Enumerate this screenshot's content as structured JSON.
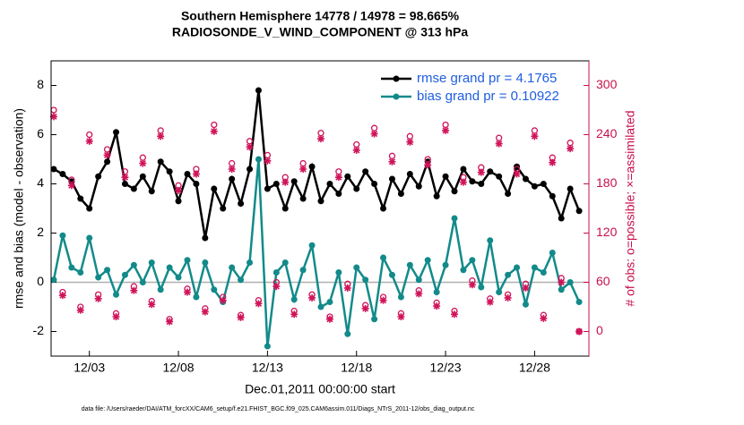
{
  "chart_data": {
    "type": "line",
    "title": "Southern Hemisphere 14778 / 14978 = 98.665%",
    "subtitle": "RADIOSONDE_V_WIND_COMPONENT @ 313 hPa",
    "x_label": "Dec.01,2011 00:00:00 start",
    "y_label": "rmse and bias (model - observation)",
    "y2_label": "# of obs: o=possible; ×=assimilated",
    "footnote": "data file: /Users/raeder/DAI/ATM_forcXX/CAM6_setup/f.e21.FHIST_BGC.f09_025.CAM6assim.011/Diags_NTrS_2011-12/obs_diag_output.nc",
    "legend": "upper right",
    "legend_text_color": "#1f5ee0",
    "y2_color": "#c8104a",
    "zero_line_color": "#b0b0b0",
    "x": [
      0,
      0.5,
      1,
      1.5,
      2,
      2.5,
      3,
      3.5,
      4,
      4.5,
      5,
      5.5,
      6,
      6.5,
      7,
      7.5,
      8,
      8.5,
      9,
      9.5,
      10,
      10.5,
      11,
      11.5,
      12,
      12.5,
      13,
      13.5,
      14,
      14.5,
      15,
      15.5,
      16,
      16.5,
      17,
      17.5,
      18,
      18.5,
      19,
      19.5,
      20,
      20.5,
      21,
      21.5,
      22,
      22.5,
      23,
      23.5,
      24,
      24.5,
      25,
      25.5,
      26,
      26.5,
      27,
      27.5,
      28,
      28.5,
      29,
      29.5
    ],
    "xlim": [
      -0.15,
      30.05
    ],
    "xticks": [
      {
        "value": 2,
        "label": "12/03"
      },
      {
        "value": 7,
        "label": "12/08"
      },
      {
        "value": 12,
        "label": "12/13"
      },
      {
        "value": 17,
        "label": "12/18"
      },
      {
        "value": 22,
        "label": "12/23"
      },
      {
        "value": 27,
        "label": "12/28"
      }
    ],
    "ylim": [
      -3,
      9
    ],
    "yticks": [
      -2,
      0,
      2,
      4,
      6,
      8
    ],
    "y2lim": [
      -30,
      330
    ],
    "y2ticks": [
      0,
      60,
      120,
      180,
      240,
      300
    ],
    "series": [
      {
        "name": "rmse grand pr = 4.1765",
        "color": "#000000",
        "marker": "dot",
        "values": [
          4.6,
          4.4,
          4.1,
          3.4,
          3.0,
          4.3,
          4.9,
          6.1,
          4.0,
          3.8,
          4.3,
          3.7,
          4.9,
          4.5,
          3.3,
          4.4,
          4.0,
          1.8,
          3.8,
          3.0,
          4.2,
          3.2,
          4.6,
          7.8,
          3.8,
          4.0,
          3.0,
          4.1,
          3.4,
          4.7,
          3.3,
          4.0,
          3.6,
          4.3,
          3.8,
          4.5,
          4.0,
          3.0,
          4.2,
          3.6,
          4.4,
          3.9,
          4.9,
          3.5,
          4.3,
          3.7,
          4.6,
          4.1,
          4.0,
          4.5,
          4.3,
          3.6,
          4.7,
          4.2,
          3.9,
          4.0,
          3.5,
          2.6,
          3.8,
          2.9
        ]
      },
      {
        "name": "bias grand pr = 0.10922",
        "color": "#138a8a",
        "marker": "dot",
        "values": [
          0.1,
          1.9,
          0.6,
          0.4,
          1.8,
          0.2,
          0.5,
          -0.5,
          0.3,
          0.7,
          0.0,
          0.8,
          -0.3,
          0.6,
          0.2,
          0.9,
          -0.6,
          0.8,
          -0.3,
          -0.8,
          0.6,
          0.1,
          0.8,
          5.0,
          -2.6,
          0.4,
          0.8,
          -0.7,
          0.5,
          1.5,
          -1.0,
          -0.8,
          0.4,
          -2.1,
          0.6,
          0.1,
          -1.5,
          1.0,
          0.3,
          -0.6,
          0.7,
          0.1,
          0.9,
          -0.4,
          0.7,
          2.6,
          0.5,
          0.9,
          -0.2,
          1.7,
          -0.4,
          0.3,
          0.6,
          -0.9,
          0.6,
          0.4,
          1.2,
          -0.3,
          0.0,
          -0.8
        ]
      },
      {
        "color": "#d0145a",
        "marker": "circle",
        "axis": "y2",
        "values": [
          270,
          48,
          185,
          30,
          240,
          45,
          222,
          22,
          195,
          55,
          212,
          37,
          245,
          15,
          178,
          52,
          198,
          28,
          252,
          42,
          205,
          20,
          232,
          38,
          215,
          60,
          188,
          25,
          205,
          45,
          242,
          18,
          195,
          58,
          228,
          32,
          248,
          42,
          214,
          22,
          238,
          50,
          210,
          35,
          252,
          25,
          188,
          62,
          200,
          40,
          236,
          45,
          198,
          58,
          245,
          20,
          212,
          65,
          230,
          0
        ]
      },
      {
        "color": "#d0145a",
        "marker": "star",
        "axis": "y2",
        "values": [
          262,
          44,
          178,
          26,
          232,
          40,
          215,
          18,
          188,
          50,
          205,
          33,
          238,
          12,
          172,
          48,
          192,
          24,
          244,
          38,
          198,
          17,
          225,
          34,
          208,
          55,
          182,
          21,
          198,
          41,
          235,
          15,
          188,
          53,
          221,
          28,
          241,
          38,
          207,
          18,
          231,
          46,
          203,
          31,
          245,
          21,
          182,
          57,
          194,
          36,
          229,
          41,
          192,
          53,
          238,
          16,
          206,
          60,
          223,
          0
        ]
      }
    ]
  }
}
